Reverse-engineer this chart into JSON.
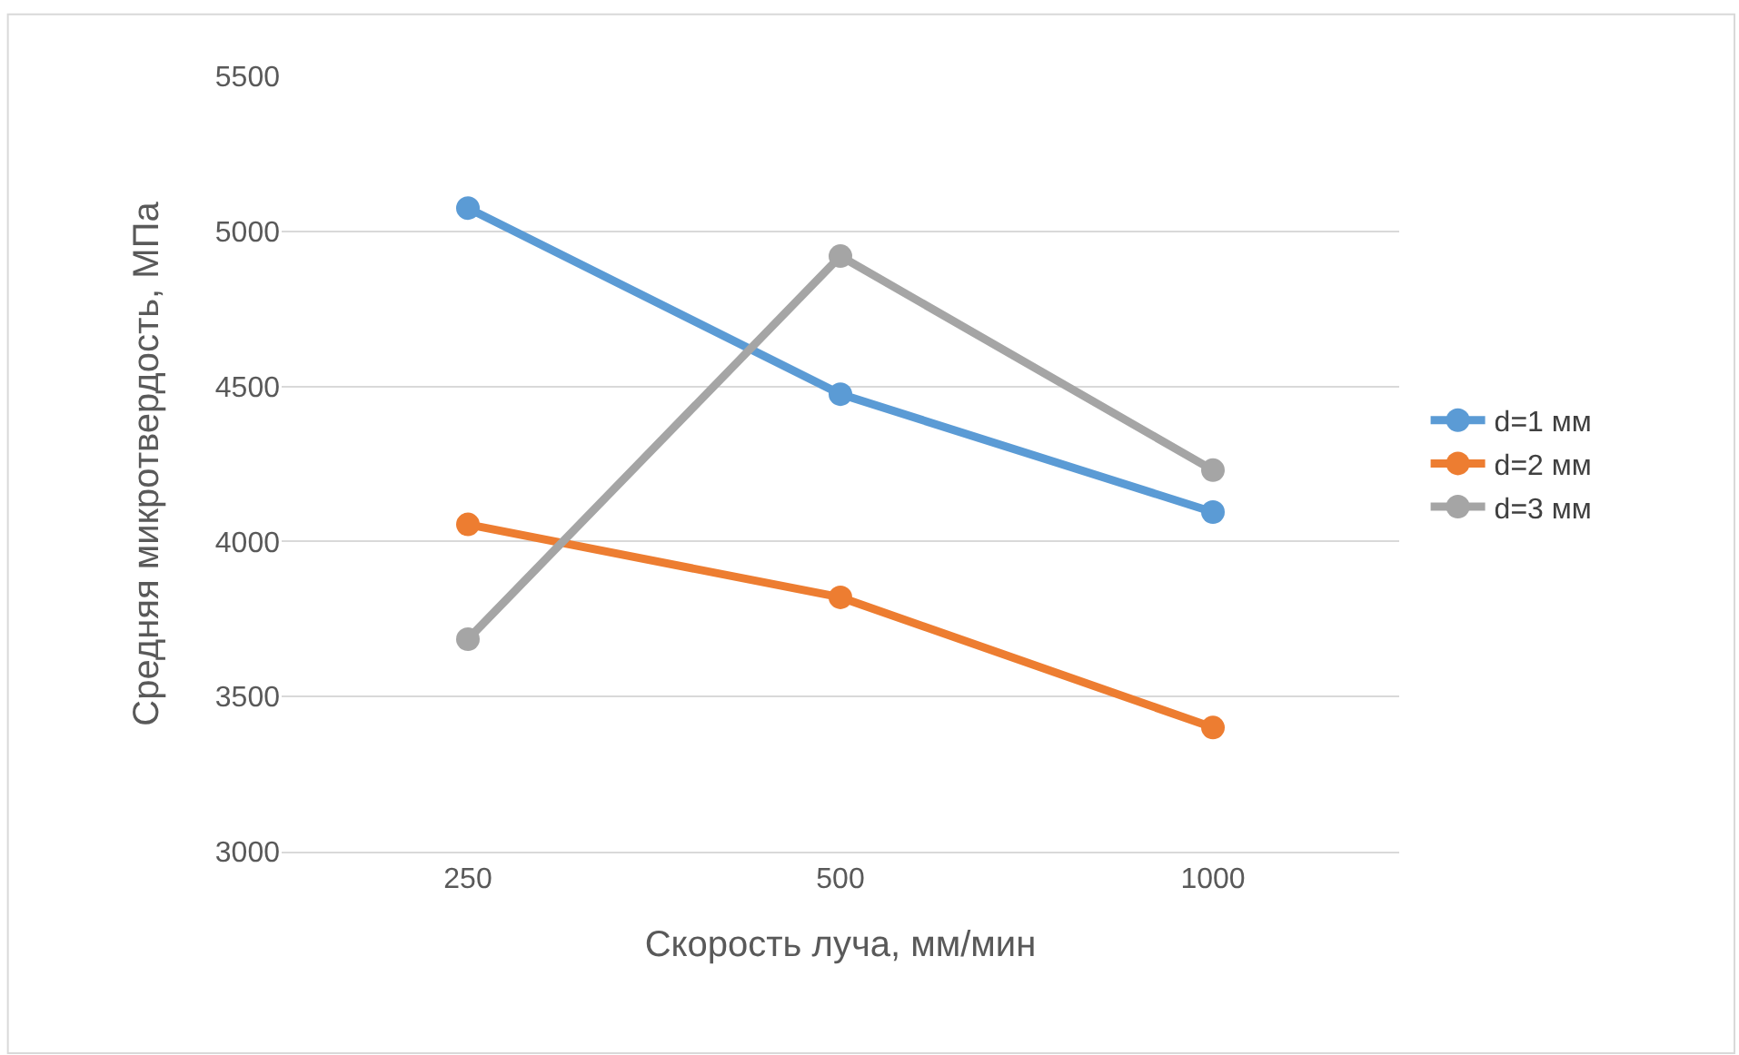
{
  "chart_data": {
    "type": "line",
    "xlabel": "Скорость луча, мм/мин",
    "ylabel": "Средняя микротвердость, МПа",
    "categories": [
      "250",
      "500",
      "1000"
    ],
    "series": [
      {
        "name": "d=1 мм",
        "color": "#5b9bd5",
        "values": [
          5075,
          4475,
          4095
        ]
      },
      {
        "name": "d=2 мм",
        "color": "#ed7d31",
        "values": [
          4055,
          3820,
          3400
        ]
      },
      {
        "name": "d=3 мм",
        "color": "#a5a5a5",
        "values": [
          3685,
          4920,
          4230
        ]
      }
    ],
    "ylim": [
      3000,
      5500
    ],
    "yticks": [
      3000,
      3500,
      4000,
      4500,
      5000,
      5500
    ],
    "grid": "y",
    "legend": "right",
    "marker": "circle",
    "line_style": "solid"
  }
}
